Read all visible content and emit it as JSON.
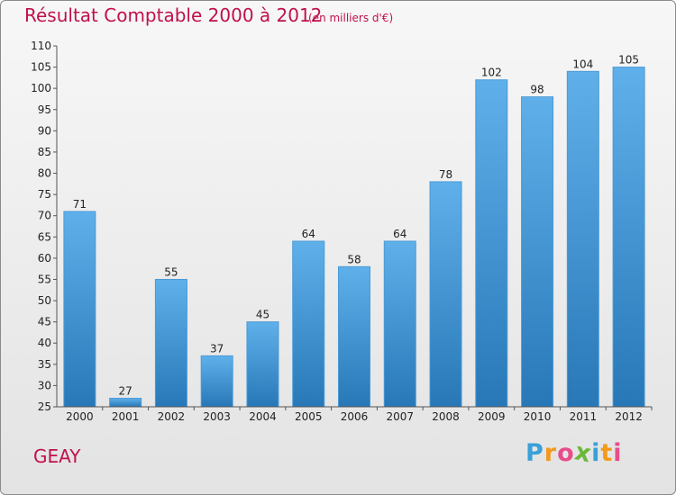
{
  "title": "Résultat Comptable 2000 à 2012",
  "subtitle": "(en milliers d'€)",
  "commune": "GEAY",
  "brand": {
    "letters": [
      "P",
      "r",
      "o",
      "x",
      "i",
      "t",
      "i"
    ],
    "colors": [
      "#3aa0d8",
      "#f39a1e",
      "#e84c8b",
      "#6bb83a",
      "#3aa0d8",
      "#f39a1e",
      "#e84c8b"
    ]
  },
  "colors": {
    "bar_top": "#5fb0ea",
    "bar_bottom": "#2878b8",
    "axis": "#555555",
    "title": "#c0104c"
  },
  "chart_data": {
    "type": "bar",
    "title": "Résultat Comptable 2000 à 2012",
    "subtitle": "(en milliers d'€)",
    "categories": [
      "2000",
      "2001",
      "2002",
      "2003",
      "2004",
      "2005",
      "2006",
      "2007",
      "2008",
      "2009",
      "2010",
      "2011",
      "2012"
    ],
    "values": [
      71,
      27,
      55,
      37,
      45,
      64,
      58,
      64,
      78,
      102,
      98,
      104,
      105
    ],
    "ylim": [
      25,
      110
    ],
    "yticks": [
      25,
      30,
      35,
      40,
      45,
      50,
      55,
      60,
      65,
      70,
      75,
      80,
      85,
      90,
      95,
      100,
      105,
      110
    ],
    "xlabel": "",
    "ylabel": "",
    "grid": false,
    "legend": "none"
  }
}
